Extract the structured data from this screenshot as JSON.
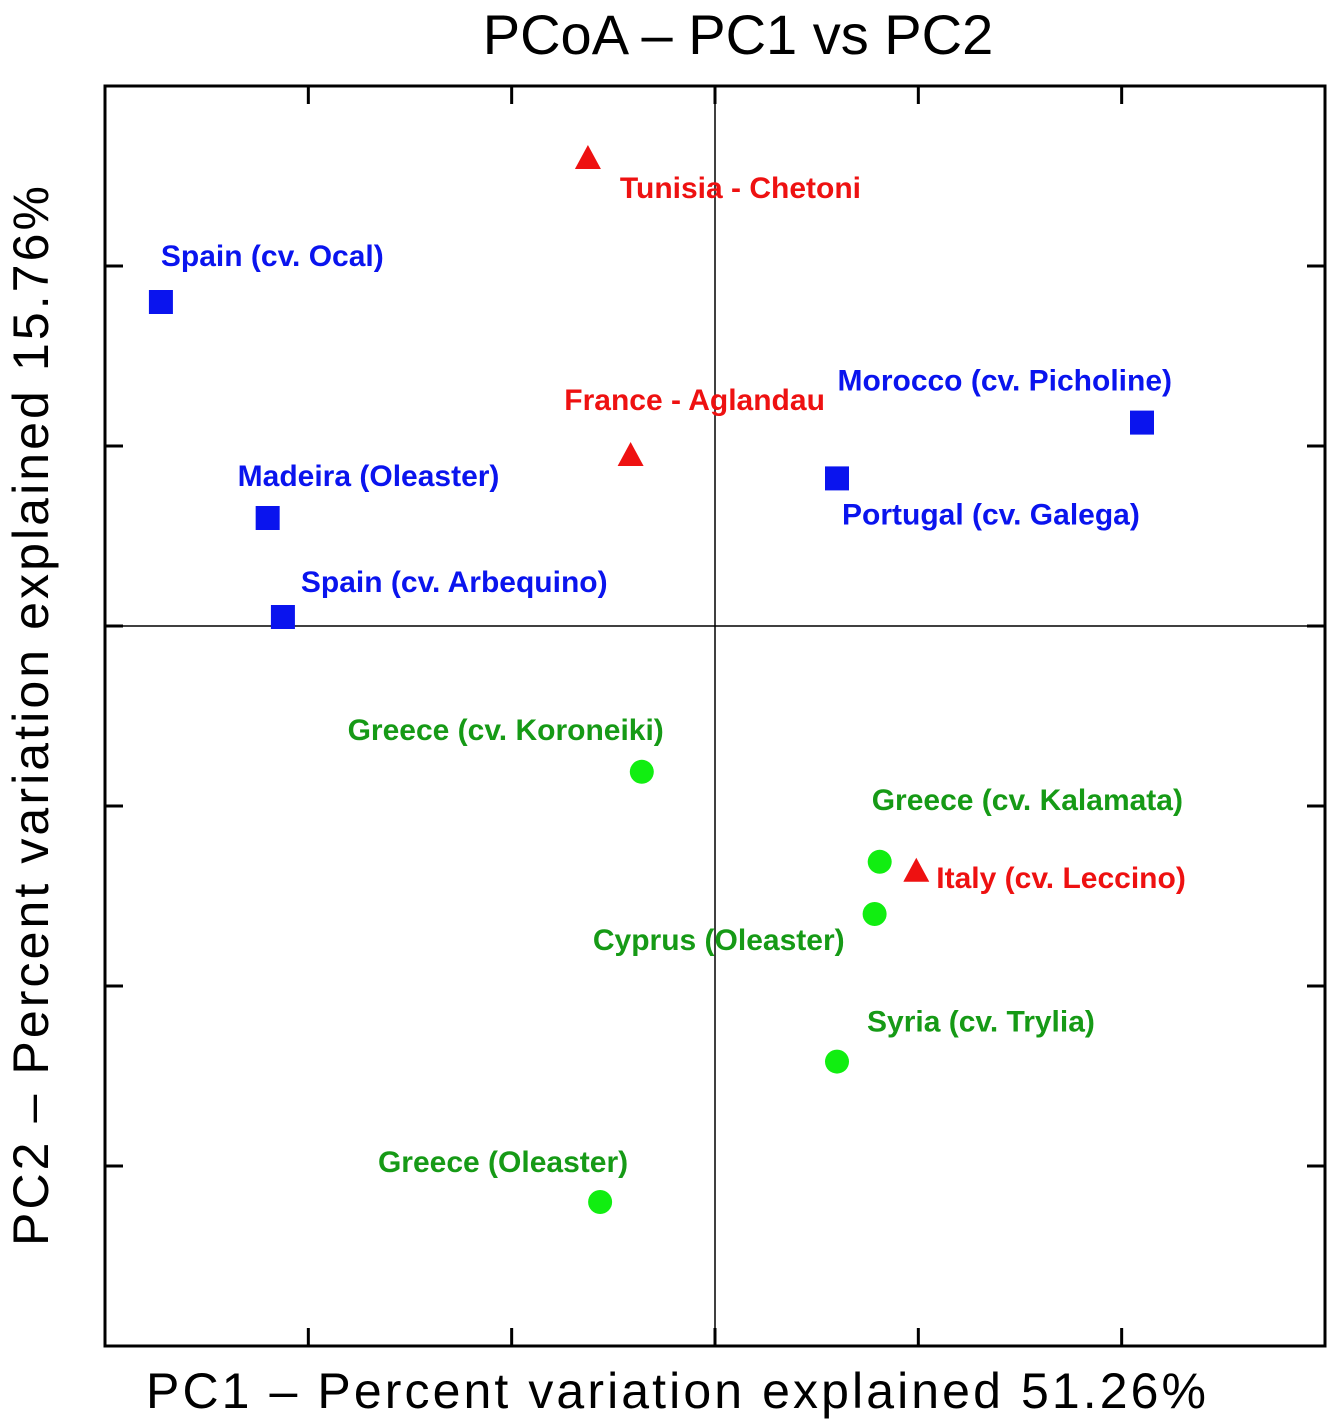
{
  "chart_data": {
    "type": "scatter",
    "title": "PCoA – PC1 vs PC2",
    "xlabel": "PC1 – Percent variation explained 51.26%",
    "ylabel": "PC2 – Percent variation explained 15.76%",
    "xlim": [
      -6,
      6
    ],
    "ylim": [
      -4,
      3
    ],
    "grid": false,
    "reference_lines": {
      "x": 0,
      "y": 0
    },
    "colors": {
      "blue": "#0a14ee",
      "red": "#ee1111",
      "green": "#11ee11",
      "green_label": "#169a16"
    },
    "points": [
      {
        "label": "Tunisia - Chetoni",
        "x": -1.25,
        "y": 2.6,
        "group": "red",
        "marker": "triangle"
      },
      {
        "label": "Spain (cv. Ocal)",
        "x": -5.45,
        "y": 1.8,
        "group": "blue",
        "marker": "square"
      },
      {
        "label": "France - Aglandau",
        "x": -0.83,
        "y": 0.95,
        "group": "red",
        "marker": "triangle"
      },
      {
        "label": "Morocco  (cv. Picholine)",
        "x": 4.2,
        "y": 1.13,
        "group": "blue",
        "marker": "square"
      },
      {
        "label": "Portugal (cv. Galega)",
        "x": 1.2,
        "y": 0.82,
        "group": "blue",
        "marker": "square"
      },
      {
        "label": "Madeira  (Oleaster)",
        "x": -4.4,
        "y": 0.6,
        "group": "blue",
        "marker": "square"
      },
      {
        "label": "Spain (cv. Arbequino)",
        "x": -4.25,
        "y": 0.05,
        "group": "blue",
        "marker": "square"
      },
      {
        "label": "Greece  (cv. Koroneiki)",
        "x": -0.72,
        "y": -0.81,
        "group": "green",
        "marker": "circle"
      },
      {
        "label": "Greece  (cv. Kalamata)",
        "x": 1.62,
        "y": -1.31,
        "group": "green",
        "marker": "circle"
      },
      {
        "label": "Italy (cv. Leccino)",
        "x": 1.98,
        "y": -1.36,
        "group": "red",
        "marker": "triangle"
      },
      {
        "label": "Cyprus (Oleaster)",
        "x": 1.57,
        "y": -1.6,
        "group": "green",
        "marker": "circle"
      },
      {
        "label": "Syria (cv. Trylia)",
        "x": 1.2,
        "y": -2.42,
        "group": "green",
        "marker": "circle"
      },
      {
        "label": "Greece (Oleaster)",
        "x": -1.13,
        "y": -3.2,
        "group": "green",
        "marker": "circle"
      }
    ]
  }
}
